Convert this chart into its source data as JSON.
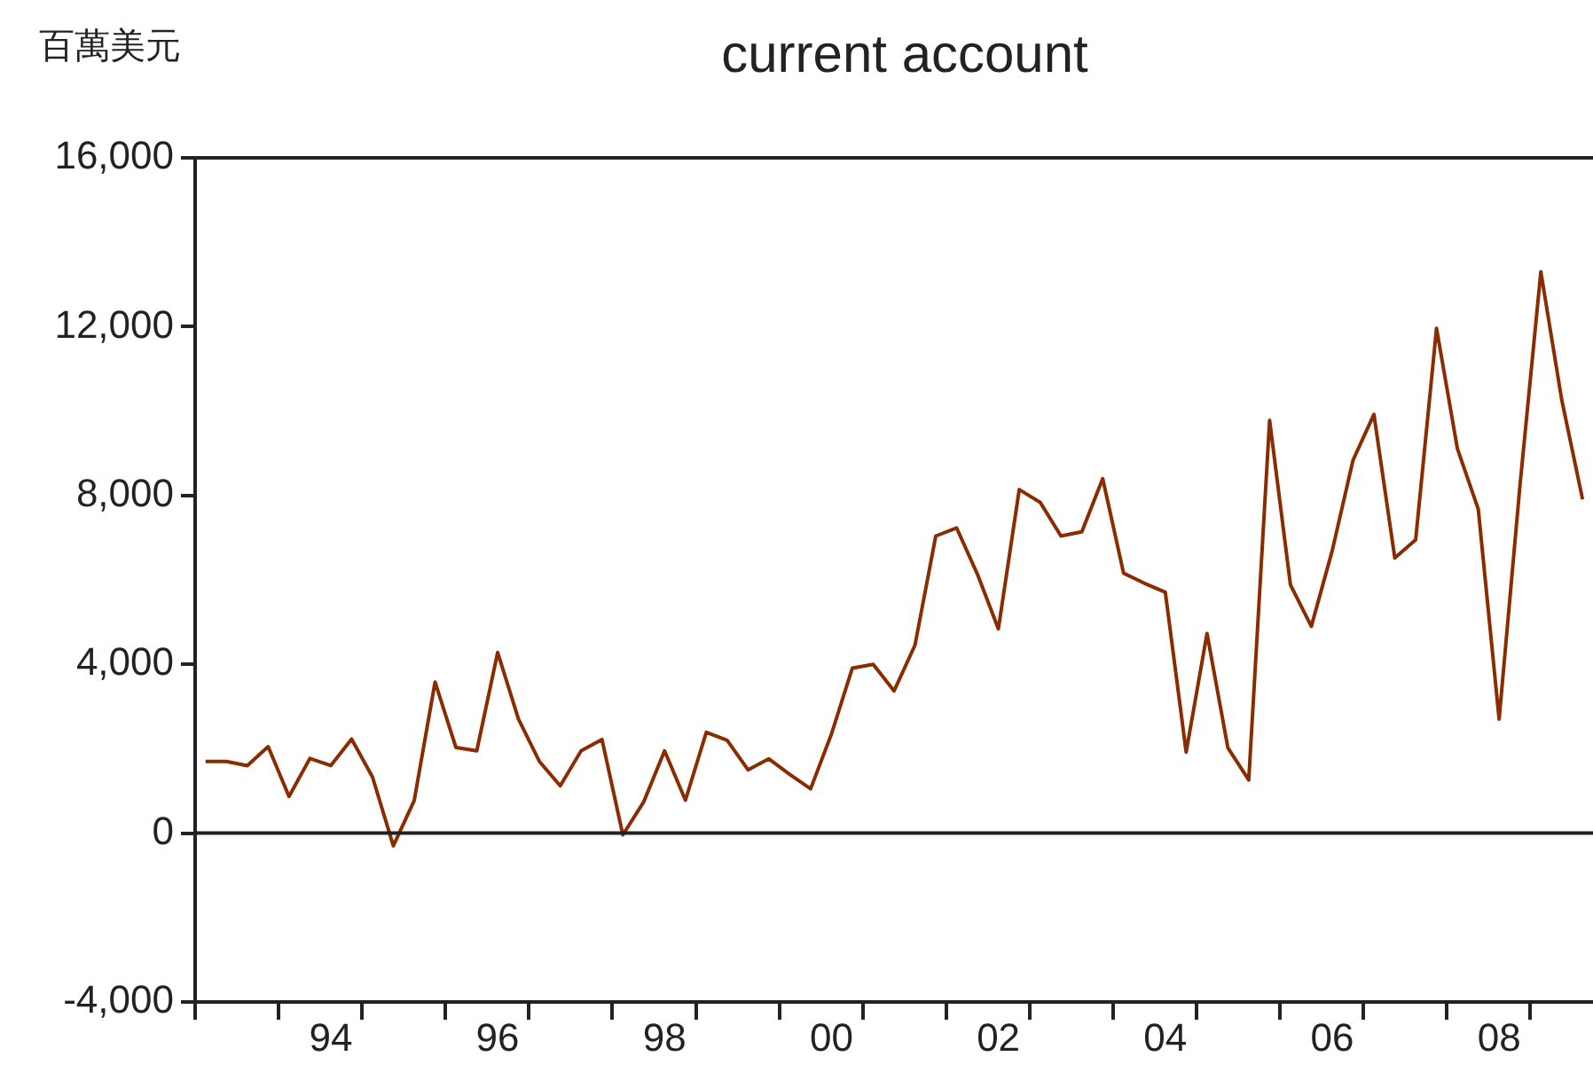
{
  "chart_data": {
    "type": "line",
    "title": "current account",
    "ylabel": "百萬美元",
    "categories": [
      null,
      null,
      null,
      null,
      null,
      null,
      "94",
      null,
      null,
      null,
      null,
      null,
      null,
      null,
      "96",
      null,
      null,
      null,
      null,
      null,
      null,
      null,
      "98",
      null,
      null,
      null,
      null,
      null,
      null,
      null,
      "00",
      null,
      null,
      null,
      null,
      null,
      null,
      null,
      "02",
      null,
      null,
      null,
      null,
      null,
      null,
      null,
      "04",
      null,
      null,
      null,
      null,
      null,
      null,
      null,
      "06",
      null,
      null,
      null,
      null,
      null,
      null,
      null,
      "08",
      null,
      null,
      null,
      null
    ],
    "series": [
      {
        "color": "#8b2c00",
        "values": [
          1700,
          1700,
          1600,
          2050,
          870,
          1770,
          1600,
          2230,
          1330,
          -300,
          770,
          3580,
          2030,
          1950,
          4280,
          2700,
          1700,
          1120,
          1950,
          2220,
          -40,
          740,
          1950,
          780,
          2390,
          2200,
          1500,
          1760,
          1390,
          1050,
          2350,
          3910,
          4000,
          3370,
          4450,
          7040,
          7230,
          6130,
          4840,
          8140,
          7840,
          7040,
          7140,
          8400,
          6160,
          5920,
          5710,
          1920,
          4730,
          2020,
          1260,
          9780,
          5880,
          4900,
          6690,
          8840,
          9920,
          6520,
          6950,
          11960,
          9110,
          7680,
          2700,
          8240,
          13300,
          10270,
          7910
        ]
      }
    ],
    "ylim": [
      -4000,
      16000
    ],
    "yticks": [
      {
        "value": -4000,
        "label": "-4,000"
      },
      {
        "value": 0,
        "label": "0"
      },
      {
        "value": 4000,
        "label": "4,000"
      },
      {
        "value": 8000,
        "label": "8,000"
      },
      {
        "value": 12000,
        "label": "12,000"
      },
      {
        "value": 16000,
        "label": "16,000"
      }
    ],
    "ref_lines": [
      {
        "axis": "y",
        "value": 0,
        "color": "#222222"
      }
    ],
    "grid": false,
    "legend": false,
    "marker": "none",
    "line_style": "solid"
  }
}
